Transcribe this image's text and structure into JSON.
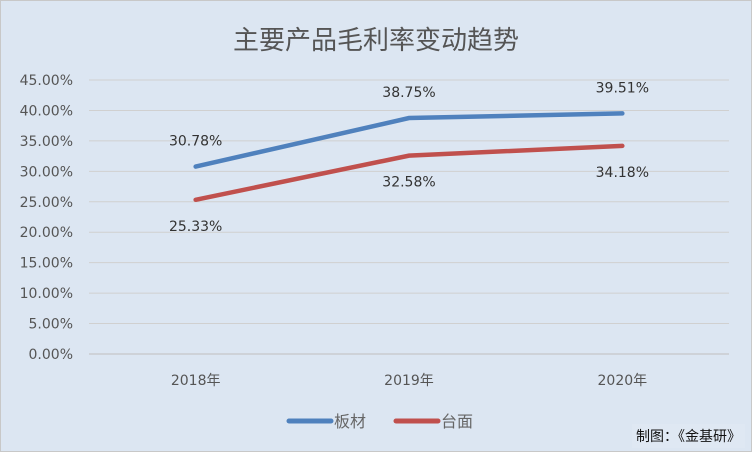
{
  "chart_data": {
    "type": "line",
    "title": "主要产品毛利率变动趋势",
    "categories": [
      "2018年",
      "2019年",
      "2020年"
    ],
    "series": [
      {
        "name": "板材",
        "color": "#4f81bd",
        "values": [
          30.78,
          38.75,
          39.51
        ],
        "labels": [
          "30.78%",
          "38.75%",
          "39.51%"
        ]
      },
      {
        "name": "台面",
        "color": "#c0504d",
        "values": [
          25.33,
          32.58,
          34.18
        ],
        "labels": [
          "25.33%",
          "32.58%",
          "34.18%"
        ]
      }
    ],
    "ylim": [
      0,
      45
    ],
    "yticks": [
      "0.00%",
      "5.00%",
      "10.00%",
      "15.00%",
      "20.00%",
      "25.00%",
      "30.00%",
      "35.00%",
      "40.00%",
      "45.00%"
    ],
    "grid": true,
    "legend": "bottom"
  },
  "credit": "制图：《金基研》"
}
